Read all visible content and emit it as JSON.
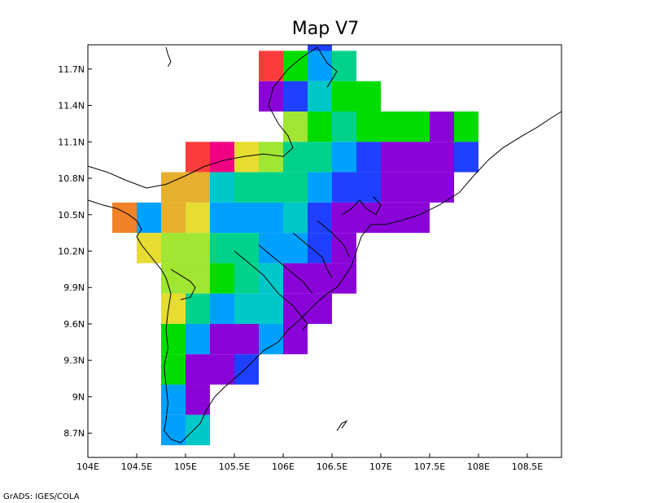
{
  "title": "Map V7",
  "credit": "GrADS: IGES/COLA",
  "chart_data": {
    "type": "heatmap",
    "xlim": [
      104.0,
      108.85
    ],
    "ylim": [
      8.5,
      11.9
    ],
    "cell_size_deg": 0.25,
    "x_ticks": [
      {
        "value": 104.0,
        "label": "104E"
      },
      {
        "value": 104.5,
        "label": "104.5E"
      },
      {
        "value": 105.0,
        "label": "105E"
      },
      {
        "value": 105.5,
        "label": "105.5E"
      },
      {
        "value": 106.0,
        "label": "106E"
      },
      {
        "value": 106.5,
        "label": "106.5E"
      },
      {
        "value": 107.0,
        "label": "107E"
      },
      {
        "value": 107.5,
        "label": "107.5E"
      },
      {
        "value": 108.0,
        "label": "108E"
      },
      {
        "value": 108.5,
        "label": "108.5E"
      }
    ],
    "y_ticks": [
      {
        "value": 8.7,
        "label": "8.7N"
      },
      {
        "value": 9.0,
        "label": "9N"
      },
      {
        "value": 9.3,
        "label": "9.3N"
      },
      {
        "value": 9.6,
        "label": "9.6N"
      },
      {
        "value": 9.9,
        "label": "9.9N"
      },
      {
        "value": 10.2,
        "label": "10.2N"
      },
      {
        "value": 10.5,
        "label": "10.5N"
      },
      {
        "value": 10.8,
        "label": "10.8N"
      },
      {
        "value": 11.1,
        "label": "11.1N"
      },
      {
        "value": 11.4,
        "label": "11.4N"
      },
      {
        "value": 11.7,
        "label": "11.7N"
      }
    ],
    "palette": {
      "purple": "#8a04d8",
      "blue": "#2040ff",
      "skyblue": "#00a0ff",
      "cyan": "#00c8c8",
      "teal": "#00d28c",
      "green": "#00dc00",
      "lime": "#a0e632",
      "yellow": "#e6dc32",
      "gold": "#e6af2d",
      "orange": "#f08228",
      "red": "#fa3c3c",
      "magenta": "#f00082"
    },
    "cells": [
      {
        "lon": 106.25,
        "lat": 11.9,
        "c": "blue"
      },
      {
        "lon": 106.25,
        "lat": 11.75,
        "c": "blue"
      },
      {
        "lon": 105.75,
        "lat": 11.6,
        "c": "red"
      },
      {
        "lon": 106.0,
        "lat": 11.6,
        "c": "green"
      },
      {
        "lon": 106.25,
        "lat": 11.6,
        "c": "skyblue"
      },
      {
        "lon": 106.5,
        "lat": 11.6,
        "c": "teal"
      },
      {
        "lon": 105.75,
        "lat": 11.35,
        "c": "purple"
      },
      {
        "lon": 106.0,
        "lat": 11.35,
        "c": "blue"
      },
      {
        "lon": 106.25,
        "lat": 11.35,
        "c": "cyan"
      },
      {
        "lon": 106.5,
        "lat": 11.35,
        "c": "green"
      },
      {
        "lon": 106.75,
        "lat": 11.35,
        "c": "green"
      },
      {
        "lon": 106.0,
        "lat": 11.1,
        "c": "lime"
      },
      {
        "lon": 106.25,
        "lat": 11.1,
        "c": "green"
      },
      {
        "lon": 106.5,
        "lat": 11.1,
        "c": "teal"
      },
      {
        "lon": 106.75,
        "lat": 11.1,
        "c": "green"
      },
      {
        "lon": 107.0,
        "lat": 11.1,
        "c": "green"
      },
      {
        "lon": 107.25,
        "lat": 11.1,
        "c": "green"
      },
      {
        "lon": 107.5,
        "lat": 11.1,
        "c": "purple"
      },
      {
        "lon": 107.75,
        "lat": 11.1,
        "c": "green"
      },
      {
        "lon": 105.0,
        "lat": 10.85,
        "c": "red"
      },
      {
        "lon": 105.25,
        "lat": 10.85,
        "c": "magenta"
      },
      {
        "lon": 105.5,
        "lat": 10.85,
        "c": "yellow"
      },
      {
        "lon": 105.75,
        "lat": 10.85,
        "c": "lime"
      },
      {
        "lon": 106.0,
        "lat": 10.85,
        "c": "teal"
      },
      {
        "lon": 106.25,
        "lat": 10.85,
        "c": "teal"
      },
      {
        "lon": 106.5,
        "lat": 10.85,
        "c": "skyblue"
      },
      {
        "lon": 106.75,
        "lat": 10.85,
        "c": "blue"
      },
      {
        "lon": 107.0,
        "lat": 10.85,
        "c": "purple"
      },
      {
        "lon": 107.25,
        "lat": 10.85,
        "c": "purple"
      },
      {
        "lon": 107.5,
        "lat": 10.85,
        "c": "purple"
      },
      {
        "lon": 107.75,
        "lat": 10.85,
        "c": "blue"
      },
      {
        "lon": 104.75,
        "lat": 10.6,
        "c": "gold"
      },
      {
        "lon": 105.0,
        "lat": 10.6,
        "c": "gold"
      },
      {
        "lon": 105.25,
        "lat": 10.6,
        "c": "cyan"
      },
      {
        "lon": 105.5,
        "lat": 10.6,
        "c": "teal"
      },
      {
        "lon": 105.75,
        "lat": 10.6,
        "c": "teal"
      },
      {
        "lon": 106.0,
        "lat": 10.6,
        "c": "teal"
      },
      {
        "lon": 106.25,
        "lat": 10.6,
        "c": "skyblue"
      },
      {
        "lon": 106.5,
        "lat": 10.6,
        "c": "blue"
      },
      {
        "lon": 106.75,
        "lat": 10.6,
        "c": "blue"
      },
      {
        "lon": 107.0,
        "lat": 10.6,
        "c": "purple"
      },
      {
        "lon": 107.25,
        "lat": 10.6,
        "c": "purple"
      },
      {
        "lon": 107.5,
        "lat": 10.6,
        "c": "purple"
      },
      {
        "lon": 104.25,
        "lat": 10.35,
        "c": "orange"
      },
      {
        "lon": 104.5,
        "lat": 10.35,
        "c": "skyblue"
      },
      {
        "lon": 104.75,
        "lat": 10.35,
        "c": "gold"
      },
      {
        "lon": 105.0,
        "lat": 10.35,
        "c": "yellow"
      },
      {
        "lon": 105.25,
        "lat": 10.35,
        "c": "skyblue"
      },
      {
        "lon": 105.5,
        "lat": 10.35,
        "c": "skyblue"
      },
      {
        "lon": 105.75,
        "lat": 10.35,
        "c": "skyblue"
      },
      {
        "lon": 106.0,
        "lat": 10.35,
        "c": "cyan"
      },
      {
        "lon": 106.25,
        "lat": 10.35,
        "c": "blue"
      },
      {
        "lon": 106.5,
        "lat": 10.35,
        "c": "purple"
      },
      {
        "lon": 106.75,
        "lat": 10.35,
        "c": "purple"
      },
      {
        "lon": 107.0,
        "lat": 10.35,
        "c": "purple"
      },
      {
        "lon": 107.25,
        "lat": 10.35,
        "c": "purple"
      },
      {
        "lon": 104.5,
        "lat": 10.1,
        "c": "yellow"
      },
      {
        "lon": 104.75,
        "lat": 10.1,
        "c": "lime"
      },
      {
        "lon": 105.0,
        "lat": 10.1,
        "c": "lime"
      },
      {
        "lon": 105.25,
        "lat": 10.1,
        "c": "teal"
      },
      {
        "lon": 105.5,
        "lat": 10.1,
        "c": "teal"
      },
      {
        "lon": 105.75,
        "lat": 10.1,
        "c": "skyblue"
      },
      {
        "lon": 106.0,
        "lat": 10.1,
        "c": "skyblue"
      },
      {
        "lon": 106.25,
        "lat": 10.1,
        "c": "blue"
      },
      {
        "lon": 106.5,
        "lat": 10.1,
        "c": "purple"
      },
      {
        "lon": 104.75,
        "lat": 9.85,
        "c": "lime"
      },
      {
        "lon": 105.0,
        "lat": 9.85,
        "c": "lime"
      },
      {
        "lon": 105.25,
        "lat": 9.85,
        "c": "green"
      },
      {
        "lon": 105.5,
        "lat": 9.85,
        "c": "teal"
      },
      {
        "lon": 105.75,
        "lat": 9.85,
        "c": "cyan"
      },
      {
        "lon": 106.0,
        "lat": 9.85,
        "c": "purple"
      },
      {
        "lon": 106.25,
        "lat": 9.85,
        "c": "purple"
      },
      {
        "lon": 106.5,
        "lat": 9.85,
        "c": "purple"
      },
      {
        "lon": 104.75,
        "lat": 9.6,
        "c": "yellow"
      },
      {
        "lon": 105.0,
        "lat": 9.6,
        "c": "teal"
      },
      {
        "lon": 105.25,
        "lat": 9.6,
        "c": "skyblue"
      },
      {
        "lon": 105.5,
        "lat": 9.6,
        "c": "cyan"
      },
      {
        "lon": 105.75,
        "lat": 9.6,
        "c": "cyan"
      },
      {
        "lon": 106.0,
        "lat": 9.6,
        "c": "purple"
      },
      {
        "lon": 106.25,
        "lat": 9.6,
        "c": "purple"
      },
      {
        "lon": 104.75,
        "lat": 9.35,
        "c": "green"
      },
      {
        "lon": 105.0,
        "lat": 9.35,
        "c": "skyblue"
      },
      {
        "lon": 105.25,
        "lat": 9.35,
        "c": "purple"
      },
      {
        "lon": 105.5,
        "lat": 9.35,
        "c": "purple"
      },
      {
        "lon": 105.75,
        "lat": 9.35,
        "c": "skyblue"
      },
      {
        "lon": 106.0,
        "lat": 9.35,
        "c": "purple"
      },
      {
        "lon": 104.75,
        "lat": 9.1,
        "c": "green"
      },
      {
        "lon": 105.0,
        "lat": 9.1,
        "c": "purple"
      },
      {
        "lon": 105.25,
        "lat": 9.1,
        "c": "purple"
      },
      {
        "lon": 105.5,
        "lat": 9.1,
        "c": "blue"
      },
      {
        "lon": 104.75,
        "lat": 8.85,
        "c": "skyblue"
      },
      {
        "lon": 105.0,
        "lat": 8.85,
        "c": "purple"
      },
      {
        "lon": 104.75,
        "lat": 8.6,
        "c": "skyblue"
      },
      {
        "lon": 105.0,
        "lat": 8.6,
        "c": "cyan"
      }
    ],
    "coastlines": [
      [
        [
          104.0,
          10.62
        ],
        [
          104.15,
          10.58
        ],
        [
          104.3,
          10.55
        ],
        [
          104.42,
          10.5
        ],
        [
          104.5,
          10.45
        ],
        [
          104.55,
          10.38
        ],
        [
          104.5,
          10.32
        ],
        [
          104.55,
          10.25
        ],
        [
          104.65,
          10.15
        ],
        [
          104.75,
          10.05
        ],
        [
          104.8,
          9.98
        ],
        [
          104.85,
          9.85
        ],
        [
          104.82,
          9.7
        ],
        [
          104.8,
          9.55
        ],
        [
          104.82,
          9.4
        ],
        [
          104.78,
          9.25
        ],
        [
          104.8,
          9.1
        ],
        [
          104.82,
          8.95
        ],
        [
          104.8,
          8.8
        ],
        [
          104.78,
          8.72
        ],
        [
          104.85,
          8.65
        ],
        [
          104.95,
          8.62
        ],
        [
          105.05,
          8.7
        ],
        [
          105.15,
          8.78
        ],
        [
          105.22,
          8.9
        ],
        [
          105.3,
          9.0
        ],
        [
          105.4,
          9.08
        ],
        [
          105.5,
          9.15
        ],
        [
          105.6,
          9.22
        ],
        [
          105.7,
          9.3
        ],
        [
          105.8,
          9.38
        ],
        [
          105.95,
          9.45
        ],
        [
          106.05,
          9.55
        ],
        [
          106.15,
          9.62
        ],
        [
          106.25,
          9.7
        ],
        [
          106.35,
          9.78
        ],
        [
          106.45,
          9.85
        ],
        [
          106.55,
          9.9
        ],
        [
          106.62,
          9.98
        ],
        [
          106.7,
          10.08
        ],
        [
          106.75,
          10.2
        ],
        [
          106.8,
          10.32
        ],
        [
          106.9,
          10.42
        ],
        [
          107.05,
          10.42
        ],
        [
          107.2,
          10.45
        ],
        [
          107.4,
          10.5
        ],
        [
          107.6,
          10.58
        ],
        [
          107.8,
          10.68
        ],
        [
          107.95,
          10.82
        ],
        [
          108.1,
          10.95
        ],
        [
          108.25,
          11.05
        ],
        [
          108.45,
          11.15
        ],
        [
          108.6,
          11.22
        ],
        [
          108.75,
          11.3
        ],
        [
          108.85,
          11.35
        ]
      ],
      [
        [
          104.85,
          10.05
        ],
        [
          104.95,
          10.0
        ],
        [
          105.05,
          9.95
        ],
        [
          105.1,
          9.9
        ],
        [
          105.05,
          9.82
        ],
        [
          104.95,
          9.8
        ]
      ],
      [
        [
          105.5,
          10.2
        ],
        [
          105.65,
          10.1
        ],
        [
          105.8,
          10.0
        ],
        [
          105.95,
          9.85
        ],
        [
          106.1,
          9.75
        ],
        [
          106.2,
          9.65
        ],
        [
          106.25,
          9.6
        ],
        [
          106.2,
          9.55
        ]
      ],
      [
        [
          105.75,
          10.25
        ],
        [
          105.9,
          10.15
        ],
        [
          106.05,
          10.05
        ],
        [
          106.2,
          9.95
        ],
        [
          106.3,
          9.85
        ]
      ],
      [
        [
          106.1,
          10.35
        ],
        [
          106.25,
          10.25
        ],
        [
          106.4,
          10.15
        ],
        [
          106.45,
          10.05
        ],
        [
          106.5,
          9.98
        ]
      ],
      [
        [
          106.35,
          10.45
        ],
        [
          106.5,
          10.35
        ],
        [
          106.62,
          10.25
        ],
        [
          106.68,
          10.15
        ]
      ],
      [
        [
          106.6,
          10.5
        ],
        [
          106.7,
          10.55
        ],
        [
          106.78,
          10.62
        ],
        [
          106.85,
          10.55
        ],
        [
          106.95,
          10.5
        ],
        [
          107.0,
          10.58
        ],
        [
          106.92,
          10.65
        ]
      ],
      [
        [
          104.0,
          10.9
        ],
        [
          104.2,
          10.85
        ],
        [
          104.4,
          10.78
        ],
        [
          104.6,
          10.72
        ],
        [
          104.8,
          10.75
        ],
        [
          105.0,
          10.82
        ],
        [
          105.2,
          10.9
        ],
        [
          105.4,
          10.95
        ],
        [
          105.6,
          10.98
        ],
        [
          105.8,
          11.0
        ],
        [
          106.0,
          10.98
        ],
        [
          106.1,
          11.05
        ],
        [
          106.05,
          11.15
        ],
        [
          105.95,
          11.25
        ],
        [
          105.85,
          11.4
        ],
        [
          105.9,
          11.55
        ],
        [
          106.05,
          11.7
        ],
        [
          106.2,
          11.8
        ],
        [
          106.35,
          11.88
        ],
        [
          106.45,
          11.75
        ],
        [
          106.55,
          11.68
        ],
        [
          106.45,
          11.55
        ]
      ],
      [
        [
          104.8,
          11.88
        ],
        [
          104.82,
          11.82
        ],
        [
          104.85,
          11.76
        ],
        [
          104.82,
          11.72
        ]
      ],
      [
        [
          106.55,
          8.72
        ],
        [
          106.6,
          8.78
        ],
        [
          106.65,
          8.8
        ],
        [
          106.6,
          8.74
        ]
      ]
    ]
  }
}
